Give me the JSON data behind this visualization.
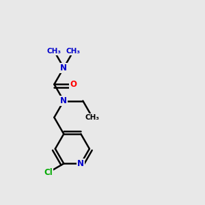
{
  "background_color": "#e8e8e8",
  "bond_color": "#000000",
  "bond_width": 1.8,
  "atom_colors": {
    "N": "#0000cc",
    "O": "#ff0000",
    "Cl": "#00aa00",
    "C": "#000000"
  },
  "figsize": [
    3.0,
    3.0
  ],
  "dpi": 100,
  "xlim": [
    0,
    10
  ],
  "ylim": [
    0,
    10
  ]
}
